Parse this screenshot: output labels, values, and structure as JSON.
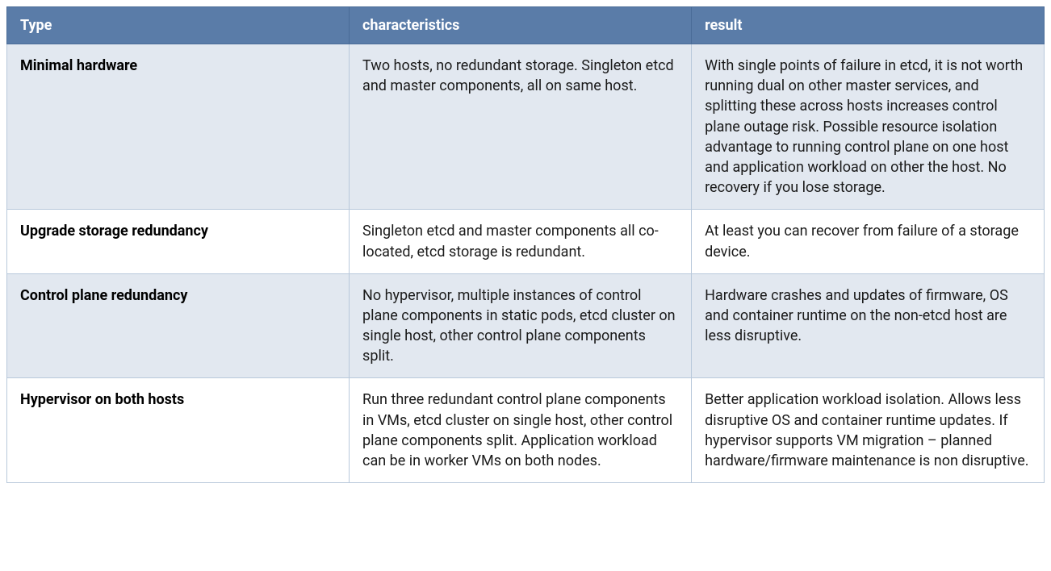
{
  "table": {
    "columns": [
      {
        "label": "Type"
      },
      {
        "label": "characteristics"
      },
      {
        "label": "result"
      }
    ],
    "rows": [
      {
        "type": "Minimal hardware",
        "characteristics": "Two hosts, no redundant storage. Singleton etcd and master components, all on same host.",
        "result": "With single points of failure in etcd, it is not worth running dual on other master services, and splitting these across hosts increases control plane outage risk. Possible resource isolation advantage to running control plane on one host and application workload on other the host. No recovery if you lose storage."
      },
      {
        "type": "Upgrade storage redundancy",
        "characteristics": "Singleton etcd and master components all co-located, etcd storage is redundant.",
        "result": "At least you can recover from failure of a storage device."
      },
      {
        "type": "Control plane redundancy",
        "characteristics": "No hypervisor, multiple instances of control plane components in static pods, etcd cluster on single host, other control plane components split.",
        "result": "Hardware crashes and updates of firmware, OS and container runtime on the non-etcd host are less disruptive."
      },
      {
        "type": "Hypervisor on both hosts",
        "characteristics": "Run three redundant control plane components in VMs, etcd cluster on single host, other control plane components split. Application workload can be in worker VMs on both nodes.",
        "result": "Better application workload isolation. Allows less disruptive OS and container runtime updates. If hypervisor supports VM migration – planned hardware/firmware maintenance is non disruptive."
      }
    ],
    "styling": {
      "header_background": "#5a7ca8",
      "header_text_color": "#ffffff",
      "row_even_background": "#e2e8f0",
      "row_odd_background": "#ffffff",
      "border_color": "#b8c8db",
      "font_family": "Roboto, Helvetica Neue, Arial, sans-serif",
      "header_font_size": 18,
      "cell_font_size": 18,
      "type_column_font_weight": 700
    }
  }
}
